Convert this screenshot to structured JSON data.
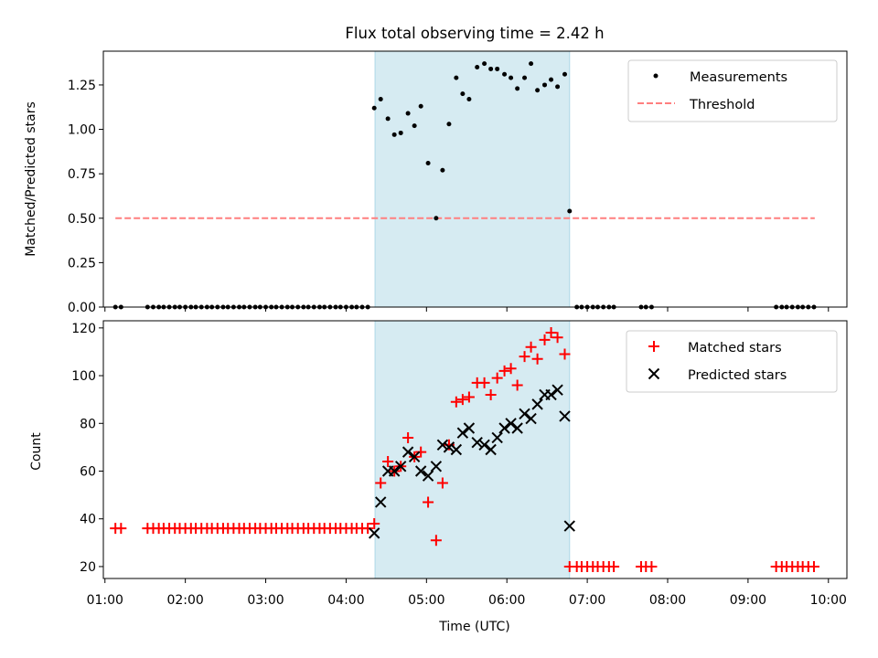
{
  "title": "Flux total observing time = 2.42 h",
  "colors": {
    "background": "#ffffff",
    "shade": "#add8e6",
    "measurement": "#000000",
    "threshold": "#ff7f7f",
    "matched": "#ff0000",
    "predicted": "#000000"
  },
  "chart_data": [
    {
      "type": "scatter",
      "panel": "top",
      "title": "Flux total observing time = 2.42 h",
      "xlabel": "",
      "ylabel": "Matched/Predicted stars",
      "xlim": [
        0.98,
        10.23
      ],
      "ylim": [
        0,
        1.44
      ],
      "yticks": [
        0,
        0.25,
        0.5,
        0.75,
        1.0,
        1.25
      ],
      "ytick_labels": [
        "0.00",
        "0.25",
        "0.50",
        "0.75",
        "1.00",
        "1.25"
      ],
      "shaded_region": [
        4.36,
        6.78
      ],
      "legend": {
        "position": "top-right",
        "entries": [
          "Measurements",
          "Threshold"
        ]
      },
      "threshold": {
        "name": "Threshold",
        "y": 0.5,
        "x": [
          1.13,
          9.83
        ]
      },
      "series": [
        {
          "name": "Measurements",
          "marker": "dot",
          "x": [
            1.13,
            1.2,
            1.53,
            1.6,
            1.67,
            1.73,
            1.8,
            1.87,
            1.93,
            2.0,
            2.07,
            2.13,
            2.2,
            2.27,
            2.33,
            2.4,
            2.47,
            2.53,
            2.6,
            2.67,
            2.73,
            2.8,
            2.87,
            2.93,
            3.0,
            3.07,
            3.13,
            3.2,
            3.27,
            3.33,
            3.4,
            3.47,
            3.53,
            3.6,
            3.67,
            3.73,
            3.8,
            3.87,
            3.93,
            4.0,
            4.07,
            4.13,
            4.2,
            4.27,
            4.35,
            4.43,
            4.52,
            4.6,
            4.68,
            4.77,
            4.85,
            4.93,
            5.02,
            5.12,
            5.2,
            5.28,
            5.37,
            5.45,
            5.53,
            5.63,
            5.72,
            5.8,
            5.88,
            5.97,
            6.05,
            6.13,
            6.22,
            6.3,
            6.38,
            6.47,
            6.55,
            6.63,
            6.72,
            6.78,
            6.87,
            6.93,
            7.0,
            7.07,
            7.13,
            7.2,
            7.27,
            7.33,
            7.67,
            7.73,
            7.8,
            9.35,
            9.42,
            9.48,
            9.55,
            9.62,
            9.68,
            9.75,
            9.82
          ],
          "y": [
            0,
            0,
            0,
            0,
            0,
            0,
            0,
            0,
            0,
            0,
            0,
            0,
            0,
            0,
            0,
            0,
            0,
            0,
            0,
            0,
            0,
            0,
            0,
            0,
            0,
            0,
            0,
            0,
            0,
            0,
            0,
            0,
            0,
            0,
            0,
            0,
            0,
            0,
            0,
            0,
            0,
            0,
            0,
            0,
            1.12,
            1.17,
            1.06,
            0.97,
            0.98,
            1.09,
            1.02,
            1.13,
            0.81,
            0.5,
            0.77,
            1.03,
            1.29,
            1.2,
            1.17,
            1.35,
            1.37,
            1.34,
            1.34,
            1.31,
            1.29,
            1.23,
            1.29,
            1.37,
            1.22,
            1.25,
            1.28,
            1.24,
            1.31,
            0.54,
            0,
            0,
            0,
            0,
            0,
            0,
            0,
            0,
            0,
            0,
            0,
            0,
            0,
            0,
            0,
            0,
            0,
            0,
            0
          ]
        }
      ]
    },
    {
      "type": "scatter",
      "panel": "bottom",
      "title": "",
      "xlabel": "Time (UTC)",
      "ylabel": "Count",
      "xlim": [
        0.98,
        10.23
      ],
      "ylim": [
        15,
        123
      ],
      "yticks": [
        20,
        40,
        60,
        80,
        100,
        120
      ],
      "ytick_labels": [
        "20",
        "40",
        "60",
        "80",
        "100",
        "120"
      ],
      "xticks": [
        1,
        2,
        3,
        4,
        5,
        6,
        7,
        8,
        9,
        10
      ],
      "xtick_labels": [
        "01:00",
        "02:00",
        "03:00",
        "04:00",
        "05:00",
        "06:00",
        "07:00",
        "08:00",
        "09:00",
        "10:00"
      ],
      "shaded_region": [
        4.36,
        6.78
      ],
      "legend": {
        "position": "top-right",
        "entries": [
          "Matched stars",
          "Predicted stars"
        ]
      },
      "series": [
        {
          "name": "Matched stars",
          "marker": "plus",
          "x": [
            1.13,
            1.2,
            1.53,
            1.6,
            1.67,
            1.73,
            1.8,
            1.87,
            1.93,
            2.0,
            2.07,
            2.13,
            2.2,
            2.27,
            2.33,
            2.4,
            2.47,
            2.53,
            2.6,
            2.67,
            2.73,
            2.8,
            2.87,
            2.93,
            3.0,
            3.07,
            3.13,
            3.2,
            3.27,
            3.33,
            3.4,
            3.47,
            3.53,
            3.6,
            3.67,
            3.73,
            3.8,
            3.87,
            3.93,
            4.0,
            4.07,
            4.13,
            4.2,
            4.27,
            4.35,
            4.43,
            4.52,
            4.6,
            4.68,
            4.77,
            4.85,
            4.93,
            5.02,
            5.12,
            5.2,
            5.28,
            5.37,
            5.45,
            5.53,
            5.63,
            5.72,
            5.8,
            5.88,
            5.97,
            6.05,
            6.13,
            6.22,
            6.3,
            6.38,
            6.47,
            6.55,
            6.63,
            6.72,
            6.78,
            6.87,
            6.93,
            7.0,
            7.07,
            7.13,
            7.2,
            7.27,
            7.33,
            7.67,
            7.73,
            7.8,
            9.35,
            9.42,
            9.48,
            9.55,
            9.62,
            9.68,
            9.75,
            9.82
          ],
          "y": [
            36,
            36,
            36,
            36,
            36,
            36,
            36,
            36,
            36,
            36,
            36,
            36,
            36,
            36,
            36,
            36,
            36,
            36,
            36,
            36,
            36,
            36,
            36,
            36,
            36,
            36,
            36,
            36,
            36,
            36,
            36,
            36,
            36,
            36,
            36,
            36,
            36,
            36,
            36,
            36,
            36,
            36,
            36,
            36,
            38,
            55,
            64,
            60,
            62,
            74,
            66,
            68,
            47,
            31,
            55,
            71,
            89,
            90,
            91,
            97,
            97,
            92,
            99,
            102,
            103,
            96,
            108,
            112,
            107,
            115,
            118,
            116,
            109,
            20,
            20,
            20,
            20,
            20,
            20,
            20,
            20,
            20,
            20,
            20,
            20,
            20,
            20,
            20,
            20,
            20,
            20,
            20,
            20
          ]
        },
        {
          "name": "Predicted stars",
          "marker": "x",
          "x": [
            4.35,
            4.43,
            4.52,
            4.6,
            4.68,
            4.77,
            4.85,
            4.93,
            5.02,
            5.12,
            5.2,
            5.28,
            5.37,
            5.45,
            5.53,
            5.63,
            5.72,
            5.8,
            5.88,
            5.97,
            6.05,
            6.13,
            6.22,
            6.3,
            6.38,
            6.47,
            6.55,
            6.63,
            6.72,
            6.78
          ],
          "y": [
            34,
            47,
            60,
            60,
            62,
            68,
            66,
            60,
            58,
            62,
            71,
            70,
            69,
            76,
            78,
            72,
            71,
            69,
            74,
            78,
            80,
            78,
            84,
            82,
            88,
            92,
            92,
            94,
            83,
            37
          ]
        }
      ]
    }
  ]
}
